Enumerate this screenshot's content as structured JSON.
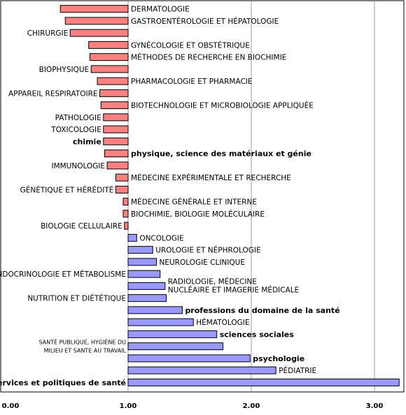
{
  "chart_data": {
    "type": "bar",
    "orientation": "horizontal",
    "reference_value": 1.0,
    "xlim": [
      0,
      3.2
    ],
    "x_ticks": [
      {
        "value": 0,
        "label": "0.00"
      },
      {
        "value": 1,
        "label": "1.00"
      },
      {
        "value": 2,
        "label": "2.00"
      },
      {
        "value": 3,
        "label": "3.00"
      }
    ],
    "grid": "vertical",
    "colors": {
      "below_reference": "#ff8080",
      "above_reference": "#9999ff",
      "bar_stroke": "#000000",
      "gridline": "#9999cc"
    },
    "bars": [
      {
        "label": "DERMATOLOGIE",
        "value": 0.45,
        "label_side": "right"
      },
      {
        "label": "GASTROENTÉROLOGIE ET HÉPATOLOGIE",
        "value": 0.49,
        "label_side": "right"
      },
      {
        "label": "CHIRURGIE",
        "value": 0.53,
        "label_side": "left"
      },
      {
        "label": "GYNÉCOLOGIE ET OBSTÉTRIQUE",
        "value": 0.68,
        "label_side": "right"
      },
      {
        "label": "MÉTHODES DE RECHERCHE EN BIOCHIMIE",
        "value": 0.69,
        "label_side": "right"
      },
      {
        "label": "BIOPHYSIQUE",
        "value": 0.7,
        "label_side": "left"
      },
      {
        "label": "PHARMACOLOGIE ET PHARMACIE",
        "value": 0.75,
        "label_side": "right"
      },
      {
        "label": "APPAREIL RESPIRATOIRE",
        "value": 0.77,
        "label_side": "left"
      },
      {
        "label": "BIOTECHNOLOGIE ET MICROBIOLOGIE APPLIQUÉE",
        "value": 0.78,
        "label_side": "right"
      },
      {
        "label": "PATHOLOGIE",
        "value": 0.8,
        "label_side": "left"
      },
      {
        "label": "TOXICOLOGIE",
        "value": 0.8,
        "label_side": "left"
      },
      {
        "label": "chimie",
        "value": 0.8,
        "label_side": "left"
      },
      {
        "label": "physique, science des matériaux et génie",
        "value": 0.81,
        "label_side": "right"
      },
      {
        "label": "IMMUNOLOGIE",
        "value": 0.83,
        "label_side": "left"
      },
      {
        "label": "MÉDECINE EXPÉRIMENTALE ET RECHERCHE",
        "value": 0.9,
        "label_side": "right"
      },
      {
        "label": "GÉNÉTIQUE ET HÉRÉDITÉ",
        "value": 0.9,
        "label_side": "left"
      },
      {
        "label": "MÉDECINE GÉNÉRALE ET INTERNE",
        "value": 0.96,
        "label_side": "right"
      },
      {
        "label": "BIOCHIMIE, BIOLOGIE MOLÉCULAIRE",
        "value": 0.96,
        "label_side": "right"
      },
      {
        "label": "BIOLOGIE CELLULAIRE",
        "value": 0.97,
        "label_side": "left"
      },
      {
        "label": "ONCOLOGIE",
        "value": 1.07,
        "label_side": "right"
      },
      {
        "label": "UROLOGIE ET NÉPHROLOGIE",
        "value": 1.2,
        "label_side": "right"
      },
      {
        "label": "NEUROLOGIE CLINIQUE",
        "value": 1.23,
        "label_side": "right"
      },
      {
        "label": "ENDOCRINOLOGIE ET MÉTABOLISME",
        "value": 1.26,
        "label_side": "left"
      },
      {
        "label": "RADIOLOGIE, MÉDECINE NUCLÉAIRE ET IMAGERIE MÉDICALE",
        "value": 1.3,
        "label_side": "right"
      },
      {
        "label": "NUTRITION ET DIÉTÉTIQUE",
        "value": 1.31,
        "label_side": "left"
      },
      {
        "label": "professions du domaine de la santé",
        "value": 1.44,
        "label_side": "right"
      },
      {
        "label": "HÉMATOLOGIE",
        "value": 1.53,
        "label_side": "right"
      },
      {
        "label": "sciences sociales",
        "value": 1.72,
        "label_side": "right"
      },
      {
        "label": "SANTÉ PUBLIQUE, HYGIÈNE DU MILIEU ET SANTE AU TRAVAIL",
        "value": 1.77,
        "label_side": "left"
      },
      {
        "label": "psychologie",
        "value": 1.99,
        "label_side": "right"
      },
      {
        "label": "PÉDIATRIE",
        "value": 2.2,
        "label_side": "right"
      },
      {
        "label": "Services et politiques de santé",
        "value": 3.2,
        "label_side": "left"
      }
    ]
  }
}
